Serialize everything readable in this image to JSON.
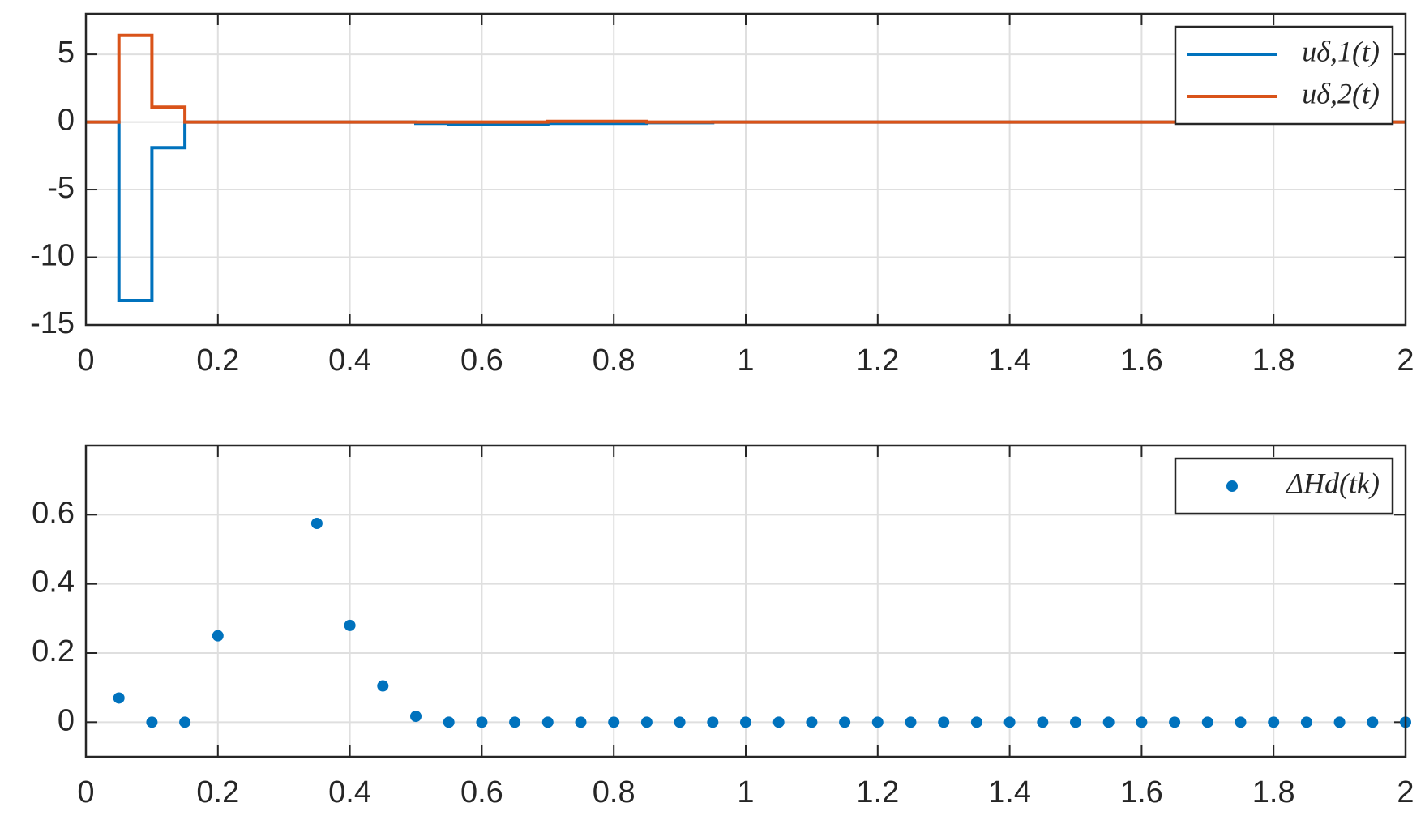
{
  "chart_data": [
    {
      "type": "line",
      "step": "post",
      "x": [
        0,
        0.05,
        0.1,
        0.15,
        0.2,
        0.25,
        0.3,
        0.35,
        0.4,
        0.45,
        0.5,
        0.55,
        0.6,
        0.65,
        0.7,
        0.75,
        0.8,
        0.85,
        0.9,
        0.95,
        1,
        1.05,
        1.1,
        1.15,
        1.2,
        1.25,
        1.3,
        1.35,
        1.4,
        1.45,
        1.5,
        1.55,
        1.6,
        1.65,
        1.7,
        1.75,
        1.8,
        1.85,
        1.9,
        1.95,
        2
      ],
      "series": [
        {
          "name": "uδ,1(t)",
          "color": "#0072bd",
          "values": [
            0,
            -13.2,
            -1.9,
            0,
            0,
            0,
            0,
            0,
            0,
            0,
            -0.1,
            -0.2,
            -0.2,
            -0.2,
            -0.1,
            -0.1,
            -0.1,
            -0.05,
            -0.05,
            0,
            0,
            0,
            0,
            0,
            0,
            0,
            0,
            0,
            0,
            0,
            0,
            0,
            0,
            0,
            0,
            0,
            0,
            0,
            0,
            0,
            0
          ]
        },
        {
          "name": "uδ,2(t)",
          "color": "#d95319",
          "values": [
            0,
            6.4,
            1.1,
            0,
            0,
            0,
            0,
            0,
            0,
            0,
            0,
            0,
            0,
            0,
            0.05,
            0.05,
            0.05,
            0,
            0,
            0,
            0,
            0,
            0,
            0,
            0,
            0,
            0,
            0,
            0,
            0,
            0,
            0,
            0,
            0,
            0,
            0,
            0,
            0,
            0,
            0,
            0
          ]
        }
      ],
      "xlim": [
        0,
        2
      ],
      "xticks": [
        0,
        0.2,
        0.4,
        0.6,
        0.8,
        1,
        1.2,
        1.4,
        1.6,
        1.8,
        2
      ],
      "ylim": [
        -15,
        8
      ],
      "yticks": [
        -15,
        -10,
        -5,
        0,
        5
      ],
      "grid": true,
      "legend": "northeast"
    },
    {
      "type": "scatter",
      "x": [
        0.05,
        0.1,
        0.15,
        0.2,
        0.35,
        0.4,
        0.45,
        0.5,
        0.55,
        0.6,
        0.65,
        0.7,
        0.75,
        0.8,
        0.85,
        0.9,
        0.95,
        1,
        1.05,
        1.1,
        1.15,
        1.2,
        1.25,
        1.3,
        1.35,
        1.4,
        1.45,
        1.5,
        1.55,
        1.6,
        1.65,
        1.7,
        1.75,
        1.8,
        1.85,
        1.9,
        1.95,
        2
      ],
      "series": [
        {
          "name": "ΔHd(tk)",
          "color": "#0072bd",
          "values": [
            0.07,
            0,
            0,
            0.25,
            0.575,
            0.28,
            0.105,
            0.017,
            0,
            0,
            0,
            0,
            0,
            0,
            0,
            0,
            0,
            0,
            0,
            0,
            0,
            0,
            0,
            0,
            0,
            0,
            0,
            0,
            0,
            0,
            0,
            0,
            0,
            0,
            0,
            0,
            0,
            0
          ]
        }
      ],
      "xlim": [
        0,
        2
      ],
      "xticks": [
        0,
        0.2,
        0.4,
        0.6,
        0.8,
        1,
        1.2,
        1.4,
        1.6,
        1.8,
        2
      ],
      "ylim": [
        -0.1,
        0.8
      ],
      "yticks": [
        0,
        0.2,
        0.4,
        0.6
      ],
      "grid": true,
      "legend": "northeast"
    }
  ]
}
